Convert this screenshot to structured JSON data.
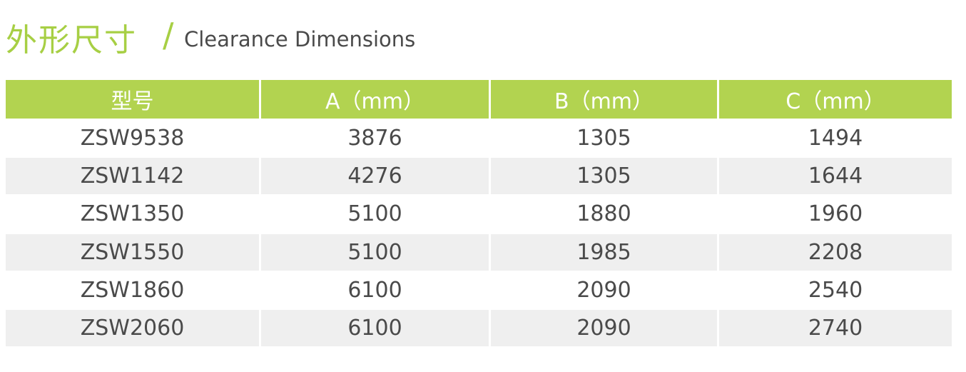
{
  "header": {
    "title_cn": "外形尺寸",
    "slash": "/",
    "title_en": "Clearance Dimensions"
  },
  "table": {
    "columns": [
      "型号",
      "A（mm）",
      "B（mm）",
      "C（mm）"
    ],
    "rows": [
      [
        "ZSW9538",
        3876,
        1305,
        1494
      ],
      [
        "ZSW1142",
        4276,
        1305,
        1644
      ],
      [
        "ZSW1350",
        5100,
        1880,
        1960
      ],
      [
        "ZSW1550",
        5100,
        1985,
        2208
      ],
      [
        "ZSW1860",
        6100,
        2090,
        2540
      ],
      [
        "ZSW2060",
        6100,
        2090,
        2740
      ]
    ]
  }
}
